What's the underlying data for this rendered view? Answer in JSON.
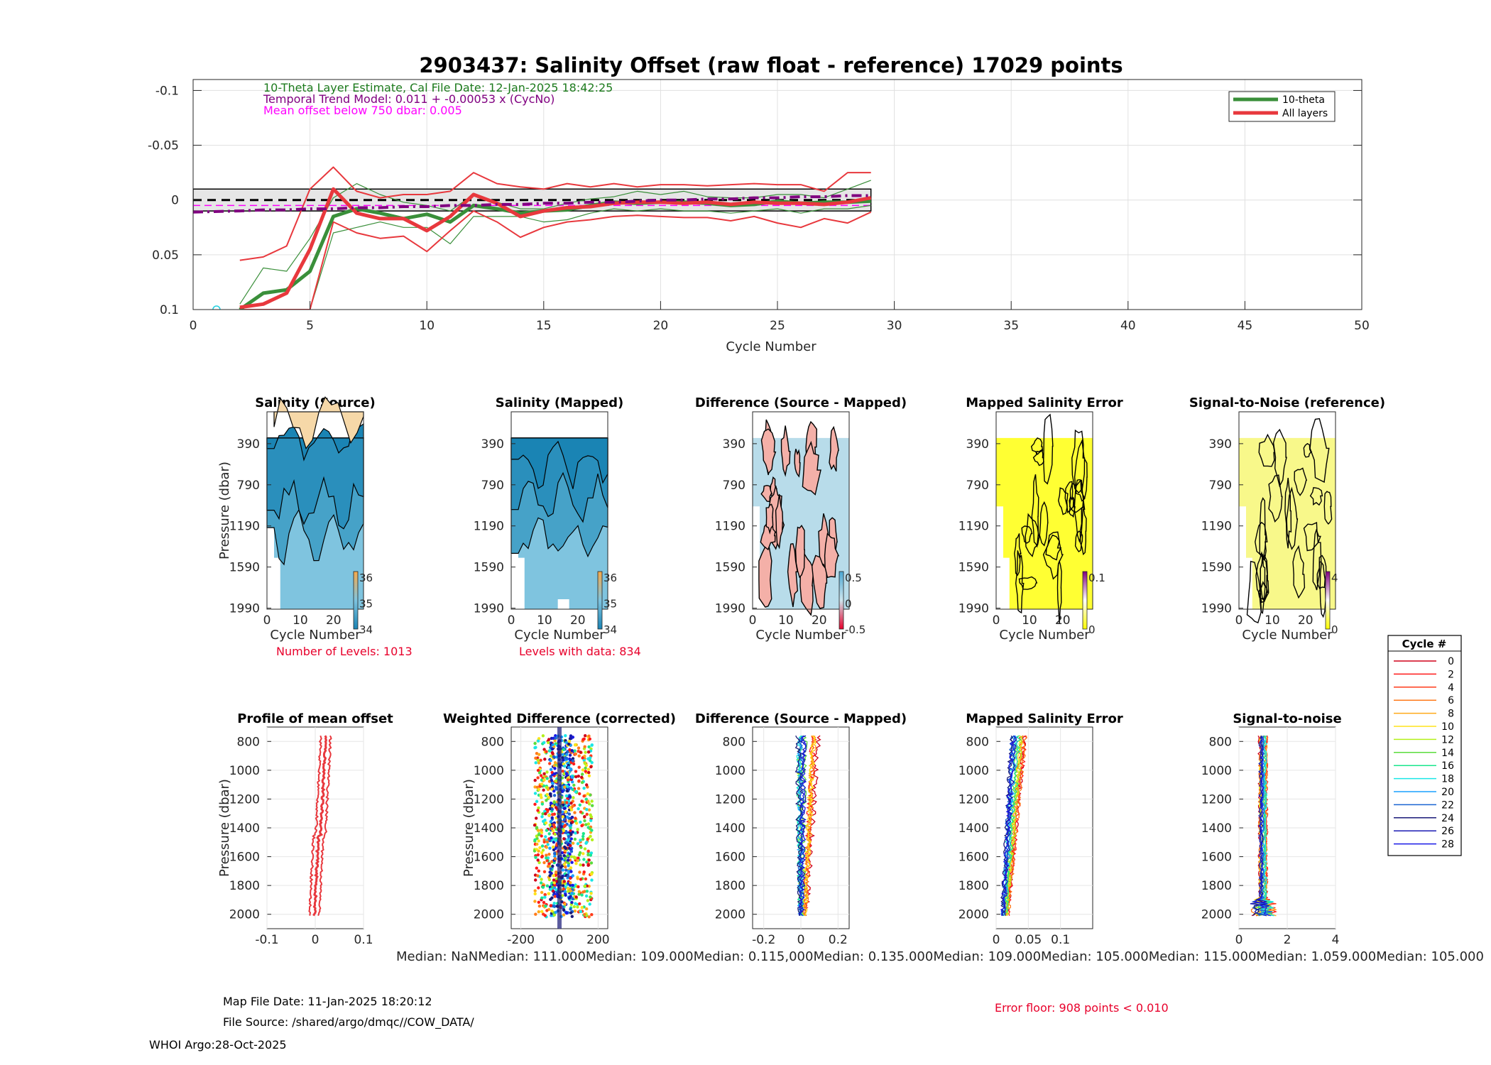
{
  "header": {
    "title": "2903437: Salinity Offset (raw float - reference)   17029 points",
    "line1": "10-Theta Layer Estimate, Cal File Date: 12-Jan-2025 18:42:25",
    "line2": "Temporal Trend Model: 0.011 + -0.00053 x (CycNo)",
    "line3": "Mean offset below 750 dbar: 0.005"
  },
  "colors": {
    "ten_theta": "#3a8f3a",
    "all_layers": "#e8383d",
    "trend": "#800080",
    "mean": "#ff00ff",
    "red_text": "#e8002b"
  },
  "chart_data": [
    {
      "id": "offset_timeseries",
      "type": "line",
      "xlabel": "Cycle Number",
      "ylabel": "",
      "xlim": [
        0,
        50
      ],
      "ylim": [
        -0.11,
        0.1
      ],
      "y_reversed": true,
      "xticks": [
        0,
        5,
        10,
        15,
        20,
        25,
        30,
        35,
        40,
        45,
        50
      ],
      "yticks": [
        -0.1,
        -0.05,
        0,
        0.05,
        0.1
      ],
      "ytick_labels": [
        "-0.1",
        "-0.05",
        "0",
        "0.05",
        "0.1"
      ],
      "grid": true,
      "legend_position": "top-right",
      "legend": [
        "10-theta",
        "All layers"
      ],
      "x": [
        2,
        3,
        4,
        5,
        6,
        7,
        8,
        9,
        10,
        11,
        12,
        13,
        14,
        15,
        16,
        17,
        18,
        19,
        20,
        21,
        22,
        23,
        24,
        25,
        26,
        27,
        28,
        29
      ],
      "series": [
        {
          "name": "10-theta",
          "values": [
            0.1,
            0.085,
            0.082,
            0.065,
            0.015,
            0.008,
            0.012,
            0.017,
            0.013,
            0.02,
            0.005,
            0.008,
            0.012,
            0.01,
            0.009,
            0.005,
            0.002,
            0.003,
            0.002,
            0.002,
            0.003,
            0.005,
            0.004,
            0.001,
            0.003,
            0.002,
            0.002,
            0.001
          ]
        },
        {
          "name": "10-theta upper",
          "values": [
            0.095,
            0.062,
            0.065,
            0.035,
            -0.002,
            -0.015,
            -0.005,
            0.002,
            0.005,
            0.01,
            -0.005,
            0.002,
            0.008,
            0.008,
            0.003,
            -0.001,
            -0.003,
            -0.008,
            -0.005,
            -0.008,
            -0.003,
            -0.002,
            -0.002,
            -0.005,
            -0.005,
            -0.002,
            -0.01,
            -0.018
          ]
        },
        {
          "name": "10-theta lower",
          "values": [
            0.1,
            0.1,
            0.1,
            0.1,
            0.03,
            0.025,
            0.02,
            0.025,
            0.025,
            0.04,
            0.015,
            0.015,
            0.015,
            0.02,
            0.018,
            0.012,
            0.008,
            0.01,
            0.008,
            0.01,
            0.01,
            0.012,
            0.01,
            0.008,
            0.012,
            0.008,
            0.008,
            0.005
          ]
        },
        {
          "name": "All layers",
          "values": [
            0.098,
            0.095,
            0.085,
            0.045,
            -0.01,
            0.012,
            0.017,
            0.017,
            0.028,
            0.015,
            -0.005,
            0.003,
            0.015,
            0.01,
            0.007,
            0.006,
            0.003,
            0.002,
            0.002,
            0.003,
            0.002,
            0.004,
            0.002,
            0.003,
            0.003,
            0.004,
            0.002,
            -0.002
          ]
        },
        {
          "name": "All layers upper",
          "values": [
            0.055,
            0.052,
            0.042,
            -0.01,
            -0.03,
            -0.008,
            -0.002,
            -0.005,
            -0.005,
            -0.008,
            -0.025,
            -0.015,
            -0.012,
            -0.01,
            -0.015,
            -0.012,
            -0.015,
            -0.012,
            -0.014,
            -0.014,
            -0.013,
            -0.014,
            -0.015,
            -0.014,
            -0.014,
            -0.008,
            -0.025,
            -0.025
          ]
        },
        {
          "name": "All layers lower",
          "values": [
            0.1,
            0.1,
            0.1,
            0.1,
            0.02,
            0.03,
            0.035,
            0.033,
            0.047,
            0.028,
            0.01,
            0.02,
            0.034,
            0.025,
            0.02,
            0.018,
            0.015,
            0.014,
            0.015,
            0.016,
            0.016,
            0.019,
            0.015,
            0.021,
            0.025,
            0.017,
            0.021,
            0.011
          ]
        },
        {
          "name": "Temporal trend",
          "values": [
            0.01,
            0.009,
            0.009,
            0.008,
            0.008,
            0.007,
            0.007,
            0.006,
            0.006,
            0.005,
            0.005,
            0.004,
            0.004,
            0.003,
            0.003,
            0.002,
            0.002,
            0.001,
            0.0,
            0.0,
            -0.001,
            -0.001,
            -0.002,
            -0.002,
            -0.003,
            -0.003,
            -0.004,
            -0.004
          ]
        }
      ],
      "band": {
        "from_cycle": 0,
        "to_cycle": 29,
        "ymin": -0.01,
        "ymax": 0.01
      },
      "cyan_marker": {
        "x": 1,
        "y": 0.1
      }
    },
    {
      "id": "salinity_source",
      "type": "heatmap",
      "title": "Salinity (Source)",
      "xlabel": "Cycle Number",
      "ylabel": "Pressure (dbar)",
      "xticks": [
        0,
        10,
        20
      ],
      "yticks": [
        390,
        790,
        1190,
        1590,
        1990
      ],
      "colorbar_ticks": [
        "36",
        "35",
        "34"
      ],
      "note": "Number of Levels: 1013"
    },
    {
      "id": "salinity_mapped",
      "type": "heatmap",
      "title": "Salinity (Mapped)",
      "xlabel": "Cycle Number",
      "xticks": [
        0,
        10,
        20
      ],
      "yticks": [
        390,
        790,
        1190,
        1590,
        1990
      ],
      "colorbar_ticks": [
        "36",
        "35",
        "34"
      ],
      "note": "Levels with data: 834"
    },
    {
      "id": "difference_map",
      "type": "heatmap",
      "title": "Difference (Source - Mapped)",
      "xlabel": "Cycle Number",
      "xticks": [
        0,
        10,
        20
      ],
      "yticks": [
        390,
        790,
        1190,
        1590,
        1990
      ],
      "colorbar_ticks": [
        "0.5",
        "0",
        "-0.5"
      ]
    },
    {
      "id": "mapped_error_map",
      "type": "heatmap",
      "title": "Mapped Salinity Error",
      "xlabel": "Cycle Number",
      "xticks": [
        0,
        10,
        20
      ],
      "yticks": [
        390,
        790,
        1190,
        1590,
        1990
      ],
      "colorbar_ticks": [
        "0.1",
        "0"
      ]
    },
    {
      "id": "snr_map",
      "type": "heatmap",
      "title": "Signal-to-Noise (reference)",
      "xlabel": "Cycle Number",
      "xticks": [
        0,
        10,
        20
      ],
      "yticks": [
        390,
        790,
        1190,
        1590,
        1990
      ],
      "colorbar_ticks": [
        "4",
        "0"
      ]
    },
    {
      "id": "mean_offset_profile",
      "type": "line",
      "title": "Profile of mean offset",
      "ylabel": "Pressure (dbar)",
      "xlim": [
        -0.1,
        0.1
      ],
      "ylim": [
        700,
        2100
      ],
      "xticks": [
        "-0.1",
        "0",
        "0.1"
      ],
      "yticks": [
        800,
        1000,
        1200,
        1400,
        1600,
        1800,
        2000
      ]
    },
    {
      "id": "weighted_difference",
      "type": "scatter",
      "title": "Weighted Difference (corrected)",
      "ylabel": "Pressure (dbar)",
      "xlim": [
        -250,
        250
      ],
      "ylim": [
        700,
        2100
      ],
      "xticks": [
        "-200",
        "0",
        "200"
      ],
      "yticks": [
        800,
        1000,
        1200,
        1400,
        1600,
        1800,
        2000
      ]
    },
    {
      "id": "difference_profiles",
      "type": "line",
      "title": "Difference (Source - Mapped)",
      "xlim": [
        -0.26,
        0.26
      ],
      "ylim": [
        700,
        2100
      ],
      "xticks": [
        "-0.2",
        "0",
        "0.2"
      ],
      "yticks": [
        800,
        1000,
        1200,
        1400,
        1600,
        1800,
        2000
      ]
    },
    {
      "id": "mapped_error_profiles",
      "type": "line",
      "title": "Mapped Salinity Error",
      "xlim": [
        0,
        0.15
      ],
      "ylim": [
        700,
        2100
      ],
      "xticks": [
        "0",
        "0.05",
        "0.1"
      ],
      "yticks": [
        800,
        1000,
        1200,
        1400,
        1600,
        1800,
        2000
      ]
    },
    {
      "id": "snr_profiles",
      "type": "line",
      "title": "Signal-to-noise",
      "xlim": [
        0,
        4
      ],
      "ylim": [
        700,
        2100
      ],
      "xticks": [
        "0",
        "2",
        "4"
      ],
      "yticks": [
        800,
        1000,
        1200,
        1400,
        1600,
        1800,
        2000
      ]
    }
  ],
  "cycle_legend": {
    "title": "Cycle #",
    "entries": [
      {
        "label": "0",
        "color": "#d0001a"
      },
      {
        "label": "2",
        "color": "#ff1a1a"
      },
      {
        "label": "4",
        "color": "#ff3a1a"
      },
      {
        "label": "6",
        "color": "#ff7a1a"
      },
      {
        "label": "8",
        "color": "#ffaa1a"
      },
      {
        "label": "10",
        "color": "#ffe41a"
      },
      {
        "label": "12",
        "color": "#b4f01a"
      },
      {
        "label": "14",
        "color": "#5adc3c"
      },
      {
        "label": "16",
        "color": "#1ae68c"
      },
      {
        "label": "18",
        "color": "#1ae6e6"
      },
      {
        "label": "20",
        "color": "#1aa0ff"
      },
      {
        "label": "22",
        "color": "#1a64d2"
      },
      {
        "label": "24",
        "color": "#1a1a78"
      },
      {
        "label": "26",
        "color": "#1a1ab4"
      },
      {
        "label": "28",
        "color": "#1a1ae6"
      }
    ]
  },
  "medians": "Median:     NaNMedian: 111.000Median: 109.000Median: 0.115,000Median: 0.135.000Median: 109.000Median: 105.000Median: 115.000Median: 1.059.000Median: 105.000",
  "footer": {
    "map_file_date": "Map File Date: 11-Jan-2025 18:20:12",
    "file_source": "File Source: /shared/argo/dmqc//COW_DATA/",
    "whoi": "WHOI Argo:28-Oct-2025",
    "error_floor": "Error floor:   908 points < 0.010"
  }
}
